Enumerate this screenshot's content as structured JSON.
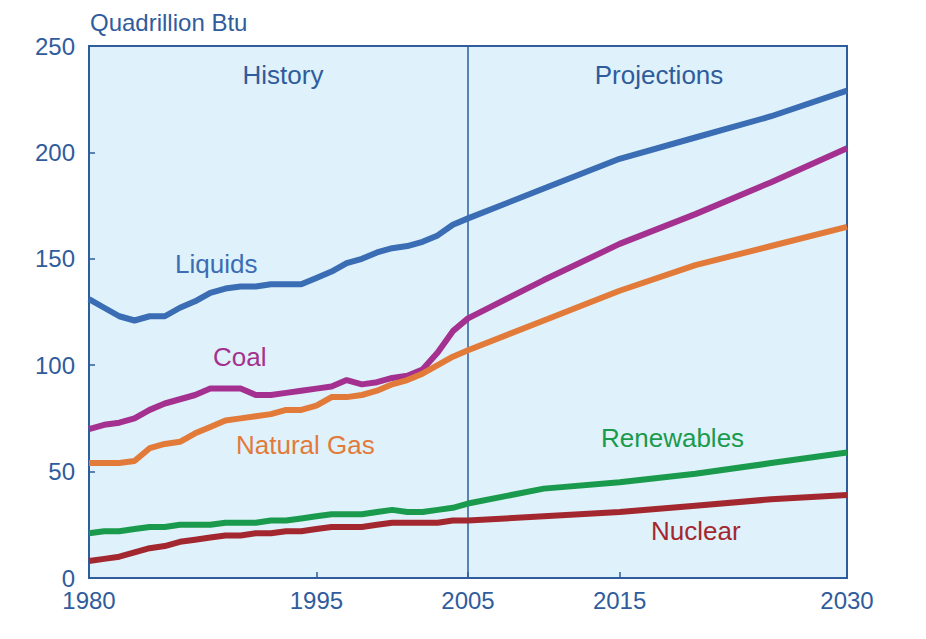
{
  "chart_data": {
    "type": "line",
    "y_label": "Quadrillion Btu",
    "x": [
      1980,
      1981,
      1982,
      1983,
      1984,
      1985,
      1986,
      1987,
      1988,
      1989,
      1990,
      1991,
      1992,
      1993,
      1994,
      1995,
      1996,
      1997,
      1998,
      1999,
      2000,
      2001,
      2002,
      2003,
      2004,
      2005,
      2010,
      2015,
      2020,
      2025,
      2030
    ],
    "series": [
      {
        "name": "Liquids",
        "color": "#3a6db4",
        "values": [
          131,
          127,
          123,
          121,
          123,
          123,
          127,
          130,
          134,
          136,
          137,
          137,
          138,
          138,
          138,
          141,
          144,
          148,
          150,
          153,
          155,
          156,
          158,
          161,
          166,
          169,
          183,
          197,
          207,
          217,
          229
        ]
      },
      {
        "name": "Coal",
        "color": "#a4318f",
        "values": [
          70,
          72,
          73,
          75,
          79,
          82,
          84,
          86,
          89,
          89,
          89,
          86,
          86,
          87,
          88,
          89,
          90,
          93,
          91,
          92,
          94,
          95,
          98,
          106,
          116,
          122,
          140,
          157,
          171,
          186,
          202
        ]
      },
      {
        "name": "Natural Gas",
        "color": "#e27b3a",
        "values": [
          54,
          54,
          54,
          55,
          61,
          63,
          64,
          68,
          71,
          74,
          75,
          76,
          77,
          79,
          79,
          81,
          85,
          85,
          86,
          88,
          91,
          93,
          96,
          100,
          104,
          107,
          121,
          135,
          147,
          156,
          165
        ]
      },
      {
        "name": "Renewables",
        "color": "#1a9a4c",
        "values": [
          21,
          22,
          22,
          23,
          24,
          24,
          25,
          25,
          25,
          26,
          26,
          26,
          27,
          27,
          28,
          29,
          30,
          30,
          30,
          31,
          32,
          31,
          31,
          32,
          33,
          35,
          42,
          45,
          49,
          54,
          59
        ]
      },
      {
        "name": "Nuclear",
        "color": "#a3272f",
        "values": [
          8,
          9,
          10,
          12,
          14,
          15,
          17,
          18,
          19,
          20,
          20,
          21,
          21,
          22,
          22,
          23,
          24,
          24,
          24,
          25,
          26,
          26,
          26,
          26,
          27,
          27,
          29,
          31,
          34,
          37,
          39
        ]
      }
    ],
    "xlim": [
      1980,
      2030
    ],
    "xticks": [
      1980,
      1995,
      2005,
      2015,
      2030
    ],
    "ylim": [
      0,
      250
    ],
    "yticks": [
      0,
      50,
      100,
      150,
      200,
      250
    ],
    "divider_x": 2005,
    "annotations": [
      "History",
      "Projections"
    ],
    "grid": false
  }
}
